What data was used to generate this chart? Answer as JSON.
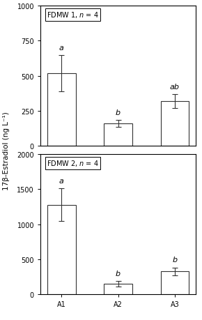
{
  "top": {
    "label_pre": "FDMW 1, ",
    "label_n": "n",
    "label_post": " = 4",
    "categories": [
      "A1",
      "A2",
      "A3"
    ],
    "values": [
      520,
      160,
      320
    ],
    "errors": [
      130,
      25,
      50
    ],
    "sig_labels": [
      "a",
      "b",
      "ab"
    ],
    "ylim": [
      0,
      1000
    ],
    "yticks": [
      0,
      250,
      500,
      750,
      1000
    ]
  },
  "bottom": {
    "label_pre": "FDMW 2, ",
    "label_n": "n",
    "label_post": " = 4",
    "categories": [
      "A1",
      "A2",
      "A3"
    ],
    "values": [
      1280,
      155,
      330
    ],
    "errors": [
      230,
      40,
      55
    ],
    "sig_labels": [
      "a",
      "b",
      "b"
    ],
    "ylim": [
      0,
      2000
    ],
    "yticks": [
      0,
      500,
      1000,
      1500,
      2000
    ]
  },
  "ylabel": "17β-Estradiol (ng L⁻¹)",
  "bar_color": "white",
  "bar_edgecolor": "#333333",
  "bar_width": 0.5,
  "capsize": 3,
  "error_color": "#333333",
  "tick_fontsize": 7,
  "sig_fontsize": 8,
  "annot_fontsize": 7,
  "ylabel_fontsize": 7.5
}
